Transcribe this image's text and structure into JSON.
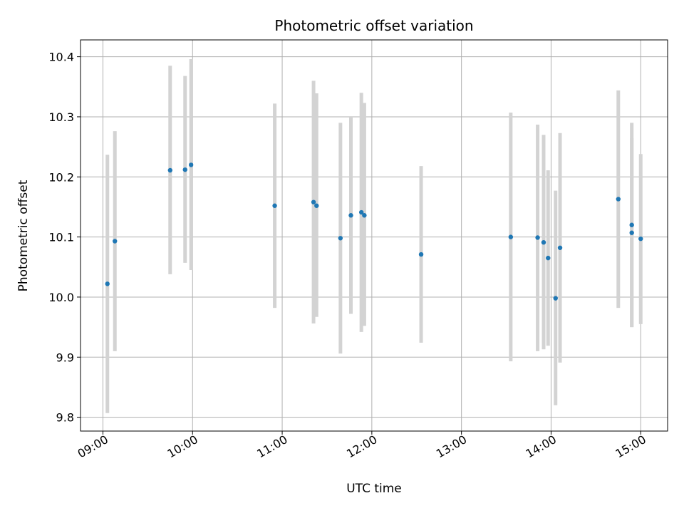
{
  "chart_data": {
    "type": "scatter",
    "title": "Photometric offset variation",
    "xlabel": "UTC time",
    "ylabel": "Photometric offset",
    "x_ticks": [
      "09:00",
      "10:00",
      "11:00",
      "12:00",
      "13:00",
      "14:00",
      "15:00"
    ],
    "y_ticks": [
      "9.8",
      "9.9",
      "10.0",
      "10.1",
      "10.2",
      "10.3",
      "10.4"
    ],
    "xlim": [
      "08:45",
      "15:18"
    ],
    "ylim": [
      9.777,
      10.428
    ],
    "grid": true,
    "point_color": "#1f77b4",
    "errorbar_color": "#d3d3d3",
    "points": [
      {
        "x": "09:03",
        "y": 10.022,
        "lo": 9.807,
        "hi": 10.237
      },
      {
        "x": "09:08",
        "y": 10.093,
        "lo": 9.91,
        "hi": 10.276
      },
      {
        "x": "09:45",
        "y": 10.211,
        "lo": 10.038,
        "hi": 10.385
      },
      {
        "x": "09:55",
        "y": 10.212,
        "lo": 10.057,
        "hi": 10.368
      },
      {
        "x": "09:59",
        "y": 10.22,
        "lo": 10.045,
        "hi": 10.396
      },
      {
        "x": "10:55",
        "y": 10.152,
        "lo": 9.982,
        "hi": 10.322
      },
      {
        "x": "11:21",
        "y": 10.158,
        "lo": 9.956,
        "hi": 10.36
      },
      {
        "x": "11:23",
        "y": 10.152,
        "lo": 9.967,
        "hi": 10.339
      },
      {
        "x": "11:39",
        "y": 10.098,
        "lo": 9.906,
        "hi": 10.29
      },
      {
        "x": "11:46",
        "y": 10.136,
        "lo": 9.972,
        "hi": 10.3
      },
      {
        "x": "11:53",
        "y": 10.141,
        "lo": 9.942,
        "hi": 10.34
      },
      {
        "x": "11:55",
        "y": 10.136,
        "lo": 9.952,
        "hi": 10.323
      },
      {
        "x": "12:33",
        "y": 10.071,
        "lo": 9.924,
        "hi": 10.218
      },
      {
        "x": "13:33",
        "y": 10.1,
        "lo": 9.893,
        "hi": 10.307
      },
      {
        "x": "13:51",
        "y": 10.099,
        "lo": 9.91,
        "hi": 10.287
      },
      {
        "x": "13:55",
        "y": 10.091,
        "lo": 9.913,
        "hi": 10.27
      },
      {
        "x": "13:58",
        "y": 10.065,
        "lo": 9.919,
        "hi": 10.211
      },
      {
        "x": "14:03",
        "y": 9.998,
        "lo": 9.82,
        "hi": 10.177
      },
      {
        "x": "14:06",
        "y": 10.082,
        "lo": 9.891,
        "hi": 10.273
      },
      {
        "x": "14:45",
        "y": 10.163,
        "lo": 9.982,
        "hi": 10.344
      },
      {
        "x": "14:54",
        "y": 10.12,
        "lo": 9.95,
        "hi": 10.29
      },
      {
        "x": "14:54",
        "y": 10.107,
        "lo": 9.95,
        "hi": 10.265
      },
      {
        "x": "15:00",
        "y": 10.097,
        "lo": 9.955,
        "hi": 10.238
      }
    ]
  }
}
